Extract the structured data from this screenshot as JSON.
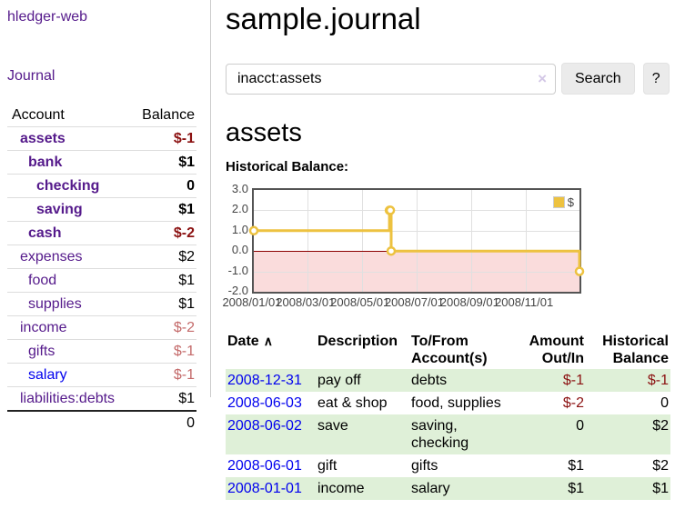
{
  "colors": {
    "purple_link": "#551a8b",
    "blue_link": "#0000ee",
    "negative_strong": "#8b1111",
    "negative_soft": "#c46a6a",
    "row_stripe_green": "#dff0d8",
    "chart_line": "#edc240",
    "chart_negative_region": "#fadcdc",
    "chart_zero_line": "#8b0000",
    "chart_border": "#545454"
  },
  "sidebar": {
    "brand": "hledger-web",
    "journal_link": "Journal",
    "account_table": {
      "header": {
        "account": "Account",
        "balance": "Balance"
      },
      "accounts": [
        {
          "name": "assets",
          "depth": 1,
          "bold": true,
          "link_color": "purple",
          "balance": "$-1",
          "balance_style": "negative-strong"
        },
        {
          "name": "bank",
          "depth": 2,
          "bold": true,
          "link_color": "purple",
          "balance": "$1",
          "balance_style": "positive"
        },
        {
          "name": "checking",
          "depth": 3,
          "bold": true,
          "link_color": "purple",
          "balance": "0",
          "balance_style": "positive"
        },
        {
          "name": "saving",
          "depth": 3,
          "bold": true,
          "link_color": "purple",
          "balance": "$1",
          "balance_style": "positive"
        },
        {
          "name": "cash",
          "depth": 2,
          "bold": true,
          "link_color": "purple",
          "balance": "$-2",
          "balance_style": "negative-strong"
        },
        {
          "name": "expenses",
          "depth": 1,
          "bold": false,
          "link_color": "purple",
          "balance": "$2",
          "balance_style": "positive"
        },
        {
          "name": "food",
          "depth": 2,
          "bold": false,
          "link_color": "purple",
          "balance": "$1",
          "balance_style": "positive"
        },
        {
          "name": "supplies",
          "depth": 2,
          "bold": false,
          "link_color": "purple",
          "balance": "$1",
          "balance_style": "positive"
        },
        {
          "name": "income",
          "depth": 1,
          "bold": false,
          "link_color": "purple",
          "balance": "$-2",
          "balance_style": "negative-soft"
        },
        {
          "name": "gifts",
          "depth": 2,
          "bold": false,
          "link_color": "purple",
          "balance": "$-1",
          "balance_style": "negative-soft"
        },
        {
          "name": "salary",
          "depth": 2,
          "bold": false,
          "link_color": "blue",
          "balance": "$-1",
          "balance_style": "negative-soft"
        },
        {
          "name": "liabilities:debts",
          "depth": 1,
          "bold": false,
          "link_color": "purple",
          "balance": "$1",
          "balance_style": "positive"
        }
      ],
      "total": "0"
    }
  },
  "main": {
    "title": "sample.journal",
    "search": {
      "value": "inacct:assets",
      "clear_icon": "×",
      "search_button": "Search",
      "help_button": "?"
    },
    "account_heading": "assets",
    "chart_title": "Historical Balance:"
  },
  "chart_data": {
    "type": "line",
    "step": true,
    "title": "Historical Balance",
    "series": [
      {
        "name": "$",
        "color": "#edc240",
        "points": [
          [
            "2008-01-01",
            1
          ],
          [
            "2008-06-01",
            2
          ],
          [
            "2008-06-02",
            2
          ],
          [
            "2008-06-03",
            0
          ],
          [
            "2008-12-31",
            -1
          ]
        ]
      }
    ],
    "ylim": [
      -2,
      3
    ],
    "y_ticks": [
      {
        "value": 3,
        "label": "3.0"
      },
      {
        "value": 2,
        "label": "2.0"
      },
      {
        "value": 1,
        "label": "1.0"
      },
      {
        "value": 0,
        "label": "0.0"
      },
      {
        "value": -1,
        "label": "-1.0"
      },
      {
        "value": -2,
        "label": "-2.0"
      }
    ],
    "x_ticks": [
      {
        "date": "2008-01-01",
        "label": "2008/01/01"
      },
      {
        "date": "2008-03-01",
        "label": "2008/03/01"
      },
      {
        "date": "2008-05-01",
        "label": "2008/05/01"
      },
      {
        "date": "2008-07-01",
        "label": "2008/07/01"
      },
      {
        "date": "2008-09-01",
        "label": "2008/09/01"
      },
      {
        "date": "2008-11-01",
        "label": "2008/11/01"
      }
    ],
    "x_range": [
      "2008-01-01",
      "2008-12-31"
    ],
    "legend": {
      "label": "$",
      "position": "top-right"
    },
    "grid": true,
    "negative_region_below": 0
  },
  "register_table": {
    "columns": [
      {
        "label": "Date",
        "sort_icon": "∧",
        "align": "left"
      },
      {
        "label": "Description",
        "align": "left"
      },
      {
        "label": "To/From Account(s)",
        "align": "left"
      },
      {
        "label": "Amount Out/In",
        "align": "right"
      },
      {
        "label": "Historical Balance",
        "align": "right"
      }
    ],
    "rows": [
      {
        "date": "2008-12-31",
        "description": "pay off",
        "accounts": "debts",
        "amount": "$-1",
        "amount_negative": true,
        "balance": "$-1",
        "balance_negative": true
      },
      {
        "date": "2008-06-03",
        "description": "eat & shop",
        "accounts": "food, supplies",
        "amount": "$-2",
        "amount_negative": true,
        "balance": "0",
        "balance_negative": false
      },
      {
        "date": "2008-06-02",
        "description": "save",
        "accounts": "saving, checking",
        "amount": "0",
        "amount_negative": false,
        "balance": "$2",
        "balance_negative": false
      },
      {
        "date": "2008-06-01",
        "description": "gift",
        "accounts": "gifts",
        "amount": "$1",
        "amount_negative": false,
        "balance": "$2",
        "balance_negative": false
      },
      {
        "date": "2008-01-01",
        "description": "income",
        "accounts": "salary",
        "amount": "$1",
        "amount_negative": false,
        "balance": "$1",
        "balance_negative": false
      }
    ]
  }
}
